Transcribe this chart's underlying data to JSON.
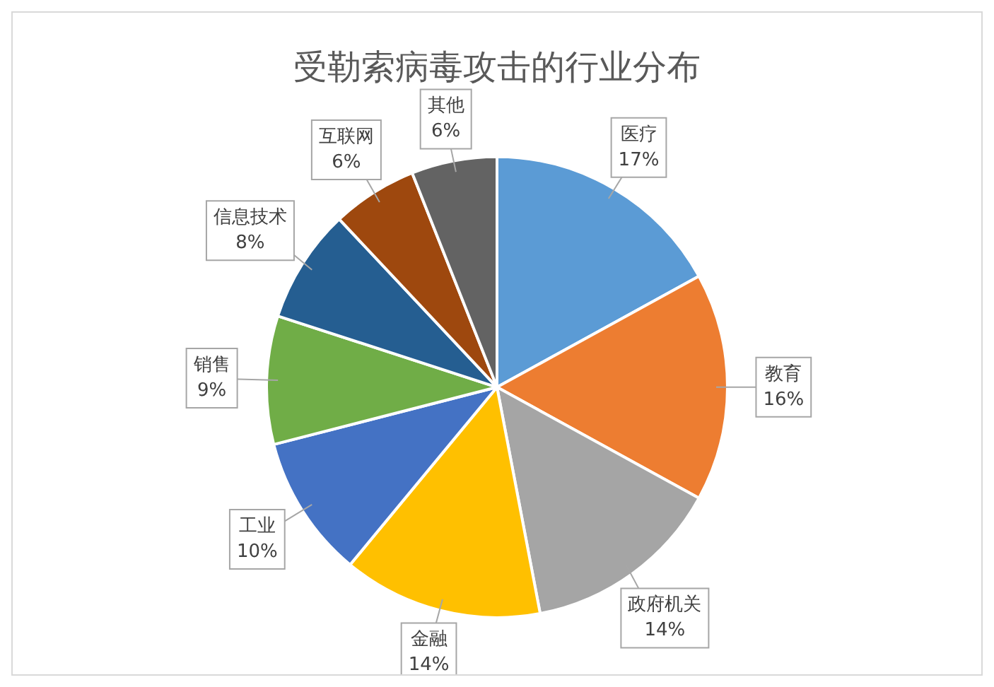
{
  "chart_data": {
    "type": "pie",
    "title": "受勒索病毒攻击的行业分布",
    "categories": [
      "医疗",
      "教育",
      "政府机关",
      "金融",
      "工业",
      "销售",
      "信息技术",
      "互联网",
      "其他"
    ],
    "values": [
      17,
      16,
      14,
      14,
      10,
      9,
      8,
      6,
      6
    ],
    "value_labels": [
      "17%",
      "16%",
      "14%",
      "14%",
      "10%",
      "9%",
      "8%",
      "6%",
      "6%"
    ],
    "colors": [
      "#5b9bd5",
      "#ed7d31",
      "#a5a5a5",
      "#ffc000",
      "#4472c4",
      "#70ad47",
      "#255e91",
      "#9e480e",
      "#636363"
    ],
    "legend": false
  }
}
